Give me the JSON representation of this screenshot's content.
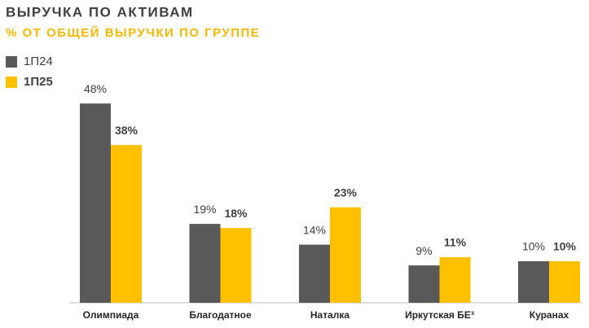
{
  "chart_data": {
    "type": "bar",
    "title": "ВЫРУЧКА ПО АКТИВАМ",
    "subtitle": "% ОТ ОБЩЕЙ ВЫРУЧКИ ПО ГРУППЕ",
    "categories": [
      "Олимпиада",
      "Благодатное",
      "Наталка",
      "Иркутская БЕ³",
      "Куранах"
    ],
    "series": [
      {
        "name": "1П24",
        "color": "#595959",
        "values": [
          48,
          19,
          14,
          9,
          10
        ],
        "value_labels": [
          "48%",
          "19%",
          "14%",
          "9%",
          "10%"
        ]
      },
      {
        "name": "1П25",
        "color": "#ffc000",
        "values": [
          38,
          18,
          23,
          11,
          10
        ],
        "value_labels": [
          "38%",
          "18%",
          "23%",
          "11%",
          "10%"
        ]
      }
    ]
  }
}
